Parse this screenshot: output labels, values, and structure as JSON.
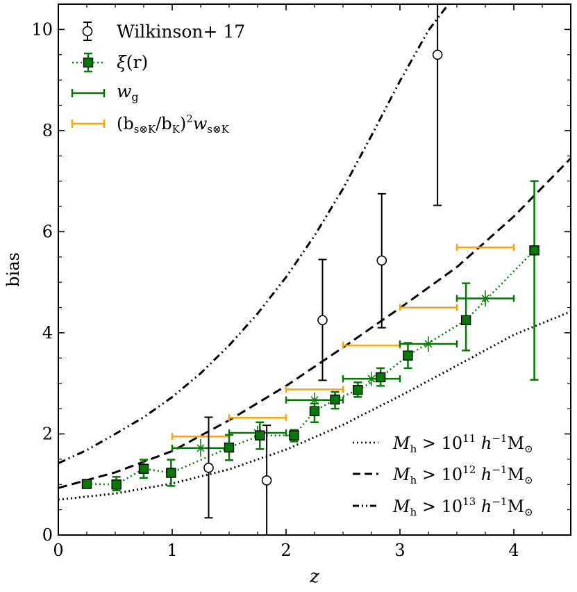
{
  "chart_data": {
    "type": "scatter",
    "xlabel": "z",
    "ylabel": "bias",
    "xlim": [
      0,
      4.5
    ],
    "ylim": [
      0,
      10.5
    ],
    "x_ticks": [
      0,
      1,
      2,
      3,
      4
    ],
    "y_ticks": [
      0,
      2,
      4,
      6,
      8,
      10
    ],
    "x_tick_labels": [
      "0",
      "1",
      "2",
      "3",
      "4"
    ],
    "y_tick_labels": [
      "0",
      "2",
      "4",
      "6",
      "8",
      "10"
    ],
    "grid": false,
    "legend_placement": "top-left",
    "colors": {
      "wilkinson": "#000000",
      "xi": "#007a00",
      "wg": "#007a00",
      "cross": "#ffa500",
      "models": "#000000"
    },
    "series": [
      {
        "name": "Wilkinson+ 17",
        "key": "wilkinson",
        "marker": "open-circle",
        "points": [
          {
            "x": 1.32,
            "y": 1.33,
            "ylo": 0.34,
            "yhi": 2.33
          },
          {
            "x": 1.83,
            "y": 1.08,
            "ylo": 0.0,
            "yhi": 2.17
          },
          {
            "x": 2.32,
            "y": 4.25,
            "ylo": 3.06,
            "yhi": 5.45
          },
          {
            "x": 2.84,
            "y": 5.43,
            "ylo": 4.1,
            "yhi": 6.75
          },
          {
            "x": 3.33,
            "y": 9.5,
            "ylo": 6.52,
            "yhi": 11.2
          }
        ]
      },
      {
        "name": "ξ(r)",
        "key": "xi",
        "marker": "filled-square",
        "line": "dotted",
        "points": [
          {
            "x": 0.25,
            "y": 1.01,
            "ylo": 0.93,
            "yhi": 1.09
          },
          {
            "x": 0.51,
            "y": 1.0,
            "ylo": 0.88,
            "yhi": 1.15
          },
          {
            "x": 0.75,
            "y": 1.31,
            "ylo": 1.13,
            "yhi": 1.49
          },
          {
            "x": 0.99,
            "y": 1.23,
            "ylo": 0.97,
            "yhi": 1.49
          },
          {
            "x": 1.5,
            "y": 1.73,
            "ylo": 1.48,
            "yhi": 1.98
          },
          {
            "x": 1.77,
            "y": 1.97,
            "ylo": 1.7,
            "yhi": 2.23
          },
          {
            "x": 2.07,
            "y": 1.97,
            "ylo": 1.85,
            "yhi": 2.08
          },
          {
            "x": 2.25,
            "y": 2.45,
            "ylo": 2.23,
            "yhi": 2.6
          },
          {
            "x": 2.43,
            "y": 2.68,
            "ylo": 2.5,
            "yhi": 2.83
          },
          {
            "x": 2.63,
            "y": 2.87,
            "ylo": 2.73,
            "yhi": 3.02
          },
          {
            "x": 2.83,
            "y": 3.12,
            "ylo": 2.95,
            "yhi": 3.3
          },
          {
            "x": 3.07,
            "y": 3.55,
            "ylo": 3.3,
            "yhi": 3.8
          },
          {
            "x": 3.58,
            "y": 4.25,
            "ylo": 3.65,
            "yhi": 4.98
          },
          {
            "x": 4.18,
            "y": 5.63,
            "ylo": 3.07,
            "yhi": 7.0
          }
        ]
      },
      {
        "name": "w_g",
        "key": "wg",
        "marker": "x-with-x-range",
        "points": [
          {
            "x": 1.25,
            "y": 1.72,
            "xlo": 1.0,
            "xhi": 1.5,
            "ylo": 1.55,
            "yhi": 1.9
          },
          {
            "x": 1.75,
            "y": 2.02,
            "xlo": 1.5,
            "xhi": 2.0,
            "ylo": 1.88,
            "yhi": 2.16
          },
          {
            "x": 2.25,
            "y": 2.67,
            "xlo": 2.0,
            "xhi": 2.5,
            "ylo": 2.52,
            "yhi": 2.82
          },
          {
            "x": 2.75,
            "y": 3.09,
            "xlo": 2.5,
            "xhi": 3.0,
            "ylo": 2.95,
            "yhi": 3.23
          },
          {
            "x": 3.25,
            "y": 3.78,
            "xlo": 3.0,
            "xhi": 3.5,
            "ylo": 3.62,
            "yhi": 3.93
          },
          {
            "x": 3.75,
            "y": 4.68,
            "xlo": 3.5,
            "xhi": 4.0,
            "ylo": 4.52,
            "yhi": 4.84
          }
        ]
      },
      {
        "name": "(b_s⊗K / b_K)² w_s⊗K",
        "key": "cross",
        "marker": "none-with-x-range",
        "points": [
          {
            "x": 1.25,
            "y": 1.95,
            "xlo": 1.0,
            "xhi": 1.5
          },
          {
            "x": 1.75,
            "y": 2.32,
            "xlo": 1.5,
            "xhi": 2.0
          },
          {
            "x": 2.25,
            "y": 2.88,
            "xlo": 2.0,
            "xhi": 2.5
          },
          {
            "x": 2.75,
            "y": 3.75,
            "xlo": 2.5,
            "xhi": 3.0
          },
          {
            "x": 3.25,
            "y": 4.5,
            "xlo": 3.0,
            "xhi": 3.5
          },
          {
            "x": 3.75,
            "y": 5.69,
            "xlo": 3.5,
            "xhi": 4.0
          }
        ]
      }
    ],
    "model_curves": [
      {
        "name": "M_h > 10^11 h^-1 M_⊙",
        "key": "m11",
        "dash": "dotted",
        "x": [
          0,
          0.5,
          1,
          1.5,
          2,
          2.5,
          3,
          3.5,
          4,
          4.5
        ],
        "y": [
          0.7,
          0.82,
          1.02,
          1.3,
          1.69,
          2.18,
          2.75,
          3.35,
          3.96,
          4.42
        ]
      },
      {
        "name": "M_h > 10^12 h^-1 M_⊙",
        "key": "m12",
        "dash": "dashed",
        "x": [
          0,
          0.5,
          1,
          1.5,
          2,
          2.5,
          3,
          3.5,
          4,
          4.5
        ],
        "y": [
          0.93,
          1.24,
          1.66,
          2.27,
          2.95,
          3.71,
          4.49,
          5.3,
          6.3,
          7.45
        ]
      },
      {
        "name": "M_h > 10^13 h^-1 M_⊙",
        "key": "m13",
        "dash": "dashdot",
        "x": [
          0,
          0.25,
          0.5,
          0.75,
          1,
          1.25,
          1.5,
          1.75,
          2,
          2.25,
          2.5,
          2.75,
          3,
          3.25,
          3.46
        ],
        "y": [
          1.42,
          1.68,
          2.0,
          2.33,
          2.73,
          3.2,
          3.75,
          4.38,
          5.1,
          5.92,
          6.85,
          7.9,
          8.98,
          9.98,
          10.6
        ]
      }
    ],
    "legend_upper": {
      "wilkinson": "Wilkinson+ 17",
      "xi_sym": "ξ",
      "xi_arg": "(r)",
      "wg_w": "w",
      "wg_sub": "g",
      "cross_open": "(b",
      "cross_sub1": "s⊗K",
      "cross_slash": "/b",
      "cross_sub2": "K",
      "cross_close": ")",
      "cross_sup": "2",
      "cross_w": "w",
      "cross_sub3": "s⊗K"
    },
    "legend_lower": [
      {
        "M": "M",
        "Msub": "h",
        "gt": " > 10",
        "exp": "11",
        "h": " h",
        "hexp": "−1",
        "unit": "M",
        "sun": "⊙"
      },
      {
        "M": "M",
        "Msub": "h",
        "gt": " > 10",
        "exp": "12",
        "h": " h",
        "hexp": "−1",
        "unit": "M",
        "sun": "⊙"
      },
      {
        "M": "M",
        "Msub": "h",
        "gt": " > 10",
        "exp": "13",
        "h": " h",
        "hexp": "−1",
        "unit": "M",
        "sun": "⊙"
      }
    ]
  }
}
